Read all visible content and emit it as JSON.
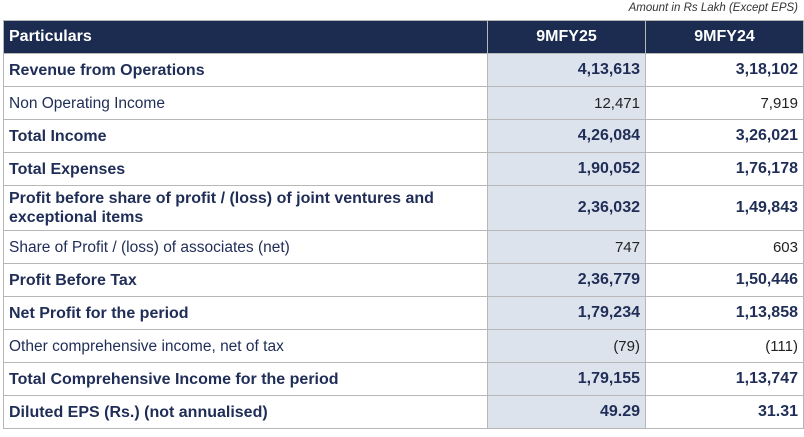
{
  "note": "Amount in Rs Lakh (Except EPS)",
  "header": {
    "particulars": "Particulars",
    "col1": "9MFY25",
    "col2": "9MFY24"
  },
  "rows": [
    {
      "label": "Revenue from Operations",
      "v1": "4,13,613",
      "v2": "3,18,102",
      "bold": true
    },
    {
      "label": "Non Operating Income",
      "v1": "12,471",
      "v2": "7,919",
      "bold": false
    },
    {
      "label": "Total Income",
      "v1": "4,26,084",
      "v2": "3,26,021",
      "bold": true
    },
    {
      "label": "Total Expenses",
      "v1": "1,90,052",
      "v2": "1,76,178",
      "bold": true
    },
    {
      "label": "Profit before share of profit / (loss) of joint ventures and exceptional items",
      "v1": "2,36,032",
      "v2": "1,49,843",
      "bold": true
    },
    {
      "label": "Share of Profit / (loss) of associates (net)",
      "v1": "747",
      "v2": "603",
      "bold": false
    },
    {
      "label": "Profit Before Tax",
      "v1": "2,36,779",
      "v2": "1,50,446",
      "bold": true
    },
    {
      "label": "Net Profit for the period",
      "v1": "1,79,234",
      "v2": "1,13,858",
      "bold": true
    },
    {
      "label": "Other comprehensive income, net of tax",
      "v1": "(79)",
      "v2": "(111)",
      "bold": false
    },
    {
      "label": "Total Comprehensive Income for the period",
      "v1": "1,79,155",
      "v2": "1,13,747",
      "bold": true
    },
    {
      "label": "Diluted EPS (Rs.) (not annualised)",
      "v1": "49.29",
      "v2": "31.31",
      "bold": true
    }
  ],
  "colors": {
    "header_bg": "#1c2b50",
    "header_text": "#ffffff",
    "highlight_col": "#dde3ec",
    "label_text": "#1f2d57",
    "border": "#b7b7b7"
  }
}
